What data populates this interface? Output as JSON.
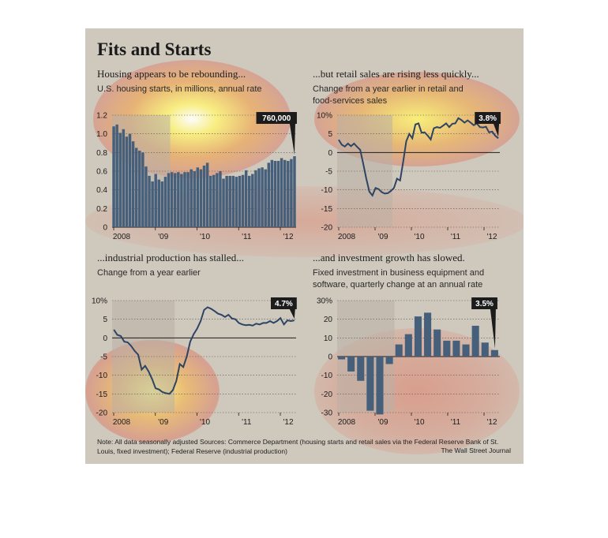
{
  "page": {
    "title": "Fits and Starts",
    "note": "Note: All data seasonally adjusted    Sources: Commerce Department (housing starts and retail sales via the Federal Reserve Bank of St. Louis, fixed investment); Federal Reserve (industrial production)",
    "credit": "The Wall Street Journal"
  },
  "colors": {
    "bar": "#46607b",
    "line": "#2d4563",
    "recession": "#b9b1a6",
    "callout": "#1c1c1c",
    "background": "#cfc8bd"
  },
  "chart_data": [
    {
      "type": "bar",
      "title": "Housing appears to be rebounding...",
      "subtitle": "U.S. housing starts, in millions, annual rate",
      "x_labels": [
        "2008",
        "'09",
        "'10",
        "'11",
        "'12"
      ],
      "y_ticks": [
        "1.2",
        "1.0",
        "0.8",
        "0.6",
        "0.4",
        "0.2",
        "0"
      ],
      "ylim": [
        0,
        1.2
      ],
      "callout": "760,000",
      "values": [
        1.08,
        1.1,
        1.01,
        1.05,
        0.97,
        1.0,
        0.92,
        0.85,
        0.82,
        0.8,
        0.65,
        0.55,
        0.49,
        0.57,
        0.51,
        0.49,
        0.54,
        0.58,
        0.59,
        0.58,
        0.59,
        0.57,
        0.59,
        0.59,
        0.62,
        0.6,
        0.64,
        0.62,
        0.66,
        0.69,
        0.55,
        0.56,
        0.58,
        0.6,
        0.52,
        0.55,
        0.55,
        0.55,
        0.54,
        0.55,
        0.56,
        0.61,
        0.55,
        0.57,
        0.61,
        0.63,
        0.64,
        0.62,
        0.69,
        0.72,
        0.71,
        0.71,
        0.74,
        0.72,
        0.71,
        0.73,
        0.76
      ]
    },
    {
      "type": "line",
      "title": "...but retail sales are rising less quickly...",
      "subtitle": "Change from a year earlier in retail and food-services sales",
      "x_labels": [
        "2008",
        "'09",
        "'10",
        "'11",
        "'12"
      ],
      "y_ticks": [
        "10%",
        "5",
        "0",
        "-5",
        "-10",
        "-15",
        "-20"
      ],
      "ylim": [
        -20,
        10
      ],
      "callout": "3.8%",
      "values": [
        3.4,
        2.1,
        1.6,
        2.4,
        1.7,
        2.4,
        1.5,
        0.7,
        -3.0,
        -7.0,
        -10.5,
        -11.5,
        -9.5,
        -9.8,
        -10.6,
        -11.0,
        -10.9,
        -10.3,
        -9.5,
        -7.0,
        -7.5,
        -2.5,
        3.0,
        5.0,
        3.8,
        7.5,
        7.8,
        5.3,
        5.4,
        4.5,
        3.5,
        6.5,
        6.8,
        6.6,
        7.2,
        7.8,
        6.8,
        7.7,
        7.8,
        9.2,
        8.7,
        8.0,
        8.6,
        8.0,
        7.3,
        7.8,
        6.8,
        6.7,
        6.9,
        5.4,
        5.6,
        4.5,
        3.8
      ]
    },
    {
      "type": "line",
      "title": "...industrial production has stalled...",
      "subtitle": "Change from a year earlier",
      "x_labels": [
        "2008",
        "'09",
        "'10",
        "'11",
        "'12"
      ],
      "y_ticks": [
        "10%",
        "5",
        "0",
        "-5",
        "-10",
        "-15",
        "-20"
      ],
      "ylim": [
        -20,
        10
      ],
      "callout": "4.7%",
      "values": [
        2.2,
        0.8,
        0.5,
        -1.0,
        -1.2,
        -2.2,
        -3.5,
        -4.5,
        -8.5,
        -7.5,
        -9.0,
        -11.0,
        -13.5,
        -13.8,
        -14.5,
        -14.8,
        -15.0,
        -14.0,
        -11.5,
        -7.0,
        -7.8,
        -5.0,
        -1.0,
        1.0,
        2.5,
        4.5,
        7.5,
        8.2,
        7.8,
        7.2,
        6.5,
        6.2,
        5.6,
        6.2,
        5.2,
        5.0,
        4.0,
        3.6,
        3.4,
        3.5,
        3.3,
        3.8,
        3.6,
        4.0,
        4.0,
        4.5,
        4.0,
        4.5,
        5.3,
        3.6,
        4.7,
        4.5,
        4.7
      ]
    },
    {
      "type": "bar",
      "title": "...and investment growth has slowed.",
      "subtitle": "Fixed investment in business equipment and software, quarterly change at an annual rate",
      "x_labels": [
        "2008",
        "'09",
        "'10",
        "'11",
        "'12"
      ],
      "y_ticks": [
        "30%",
        "20",
        "10",
        "0",
        "-10",
        "-20",
        "-30"
      ],
      "ylim": [
        -30,
        30
      ],
      "callout": "3.5%",
      "values": [
        -1.5,
        -8,
        -13,
        -29,
        -31,
        -4,
        6.5,
        12,
        21.5,
        23.5,
        14.5,
        8.5,
        8.5,
        6.5,
        16.5,
        7.5,
        3.5
      ]
    }
  ]
}
